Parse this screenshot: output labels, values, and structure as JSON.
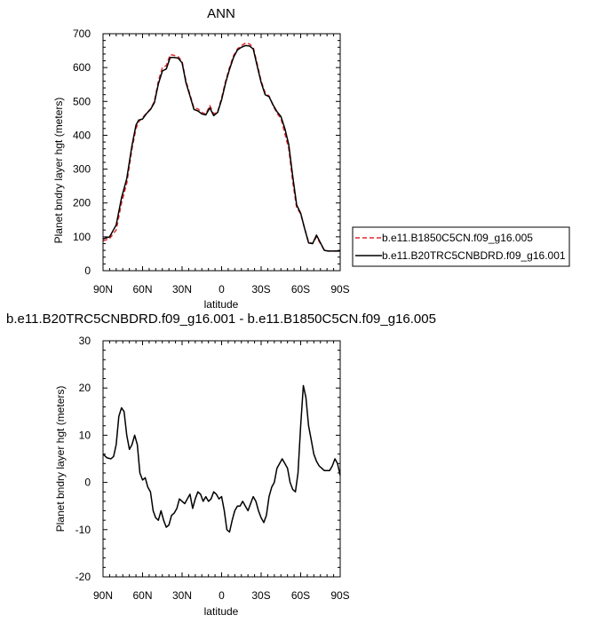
{
  "chart_data": [
    {
      "type": "line",
      "title": "ANN",
      "xlabel": "latitude",
      "ylabel": "Planet bndry layer hgt (meters)",
      "xlim": [
        90,
        -90
      ],
      "ylim": [
        0,
        700
      ],
      "x_ticks": [
        90,
        60,
        30,
        0,
        -30,
        -60,
        -90
      ],
      "x_tick_labels": [
        "90N",
        "60N",
        "30N",
        "0",
        "30S",
        "60S",
        "90S"
      ],
      "y_ticks": [
        0,
        100,
        200,
        300,
        400,
        500,
        600,
        700
      ],
      "y_tick_labels": [
        "0",
        "100",
        "200",
        "300",
        "400",
        "500",
        "600",
        "700"
      ],
      "legend": {
        "placement": "right"
      },
      "series": [
        {
          "name": "b.e11.B1850C5CN.f09_g16.005",
          "color": "#e0282e",
          "dash": "dashed",
          "x": [
            90,
            85,
            80,
            76,
            72,
            68,
            65,
            63,
            60,
            57,
            54,
            51,
            48,
            45,
            42,
            39,
            36,
            33,
            30,
            27,
            24,
            21,
            18,
            15,
            12,
            9,
            6,
            3,
            0,
            -3,
            -6,
            -9,
            -12,
            -15,
            -18,
            -21,
            -24,
            -27,
            -30,
            -33,
            -36,
            -39,
            -42,
            -45,
            -48,
            -51,
            -54,
            -57,
            -60,
            -63,
            -66,
            -69,
            -72,
            -75,
            -78,
            -81,
            -84,
            -87,
            -90
          ],
          "values": [
            88,
            95,
            120,
            200,
            258,
            360,
            420,
            440,
            452,
            465,
            478,
            500,
            560,
            600,
            606,
            638,
            636,
            632,
            618,
            560,
            520,
            480,
            478,
            468,
            462,
            488,
            463,
            470,
            510,
            560,
            600,
            635,
            655,
            665,
            672,
            670,
            660,
            610,
            560,
            526,
            516,
            488,
            465,
            450,
            405,
            360,
            262,
            186,
            168,
            125,
            85,
            80,
            100,
            80,
            60,
            58,
            58,
            58,
            58
          ]
        },
        {
          "name": "b.e11.B20TRC5CNBDRD.f09_g16.001",
          "color": "#000000",
          "dash": "solid",
          "x": [
            90,
            85,
            80,
            76,
            72,
            68,
            65,
            63,
            60,
            57,
            54,
            51,
            48,
            45,
            42,
            39,
            36,
            33,
            30,
            27,
            24,
            21,
            18,
            15,
            12,
            9,
            6,
            3,
            0,
            -3,
            -6,
            -9,
            -12,
            -15,
            -18,
            -21,
            -24,
            -27,
            -30,
            -33,
            -36,
            -39,
            -42,
            -45,
            -48,
            -51,
            -54,
            -57,
            -60,
            -63,
            -66,
            -69,
            -72,
            -75,
            -78,
            -81,
            -84,
            -87,
            -90
          ],
          "values": [
            94,
            100,
            135,
            215,
            272,
            370,
            430,
            445,
            448,
            464,
            476,
            496,
            552,
            590,
            596,
            630,
            630,
            628,
            614,
            555,
            516,
            476,
            472,
            463,
            460,
            481,
            458,
            468,
            505,
            555,
            595,
            630,
            652,
            660,
            665,
            664,
            655,
            604,
            556,
            520,
            514,
            490,
            470,
            455,
            420,
            372,
            278,
            194,
            170,
            125,
            82,
            80,
            105,
            82,
            60,
            58,
            58,
            58,
            58
          ]
        }
      ]
    },
    {
      "type": "line",
      "title": "b.e11.B20TRC5CNBDRD.f09_g16.001 - b.e11.B1850C5CN.f09_g16.005",
      "xlabel": "latitude",
      "ylabel": "Planet bndry layer hgt (meters)",
      "xlim": [
        90,
        -90
      ],
      "ylim": [
        -20,
        30
      ],
      "x_ticks": [
        90,
        60,
        30,
        0,
        -30,
        -60,
        -90
      ],
      "x_tick_labels": [
        "90N",
        "60N",
        "30N",
        "0",
        "30S",
        "60S",
        "90S"
      ],
      "y_ticks": [
        -20,
        -10,
        0,
        10,
        20,
        30
      ],
      "y_tick_labels": [
        "-20",
        "-10",
        "0",
        "10",
        "20",
        "30"
      ],
      "series": [
        {
          "color": "#000000",
          "x": [
            90,
            87,
            84,
            82,
            80,
            78,
            76,
            74,
            72,
            70,
            68,
            66,
            64,
            62,
            60,
            58,
            56,
            54,
            52,
            50,
            48,
            46,
            44,
            42,
            40,
            38,
            36,
            34,
            32,
            30,
            28,
            26,
            24,
            22,
            20,
            18,
            16,
            14,
            12,
            10,
            8,
            6,
            4,
            2,
            0,
            -2,
            -4,
            -6,
            -8,
            -10,
            -12,
            -14,
            -16,
            -18,
            -20,
            -22,
            -24,
            -26,
            -28,
            -30,
            -32,
            -34,
            -36,
            -38,
            -40,
            -42,
            -44,
            -46,
            -48,
            -50,
            -52,
            -54,
            -56,
            -58,
            -60,
            -62,
            -64,
            -66,
            -68,
            -70,
            -72,
            -74,
            -76,
            -78,
            -80,
            -82,
            -84,
            -86,
            -88,
            -90
          ],
          "values": [
            6,
            5.2,
            5,
            5.5,
            8,
            14,
            15.8,
            15,
            10,
            7,
            8,
            10,
            8,
            2,
            0.5,
            1,
            -1,
            -2,
            -6,
            -7.5,
            -8,
            -6,
            -8,
            -9.5,
            -9,
            -7,
            -6.5,
            -5.5,
            -3.5,
            -4,
            -4.5,
            -3.5,
            -2.5,
            -5.5,
            -3.5,
            -2,
            -2.5,
            -4,
            -3,
            -4,
            -3.5,
            -2,
            -2.5,
            -3.5,
            -3,
            -6,
            -10,
            -10.5,
            -8,
            -6,
            -5,
            -5,
            -4,
            -5,
            -6,
            -4.5,
            -3,
            -4,
            -6,
            -7.5,
            -8.5,
            -7,
            -3,
            -1,
            0,
            3,
            4,
            5,
            4,
            3,
            0,
            -1.5,
            -2,
            2,
            12,
            20.5,
            18,
            12,
            9,
            6,
            4.5,
            3.5,
            3,
            2.5,
            2.5,
            2.5,
            3.5,
            5,
            4,
            1.5
          ]
        }
      ]
    }
  ]
}
